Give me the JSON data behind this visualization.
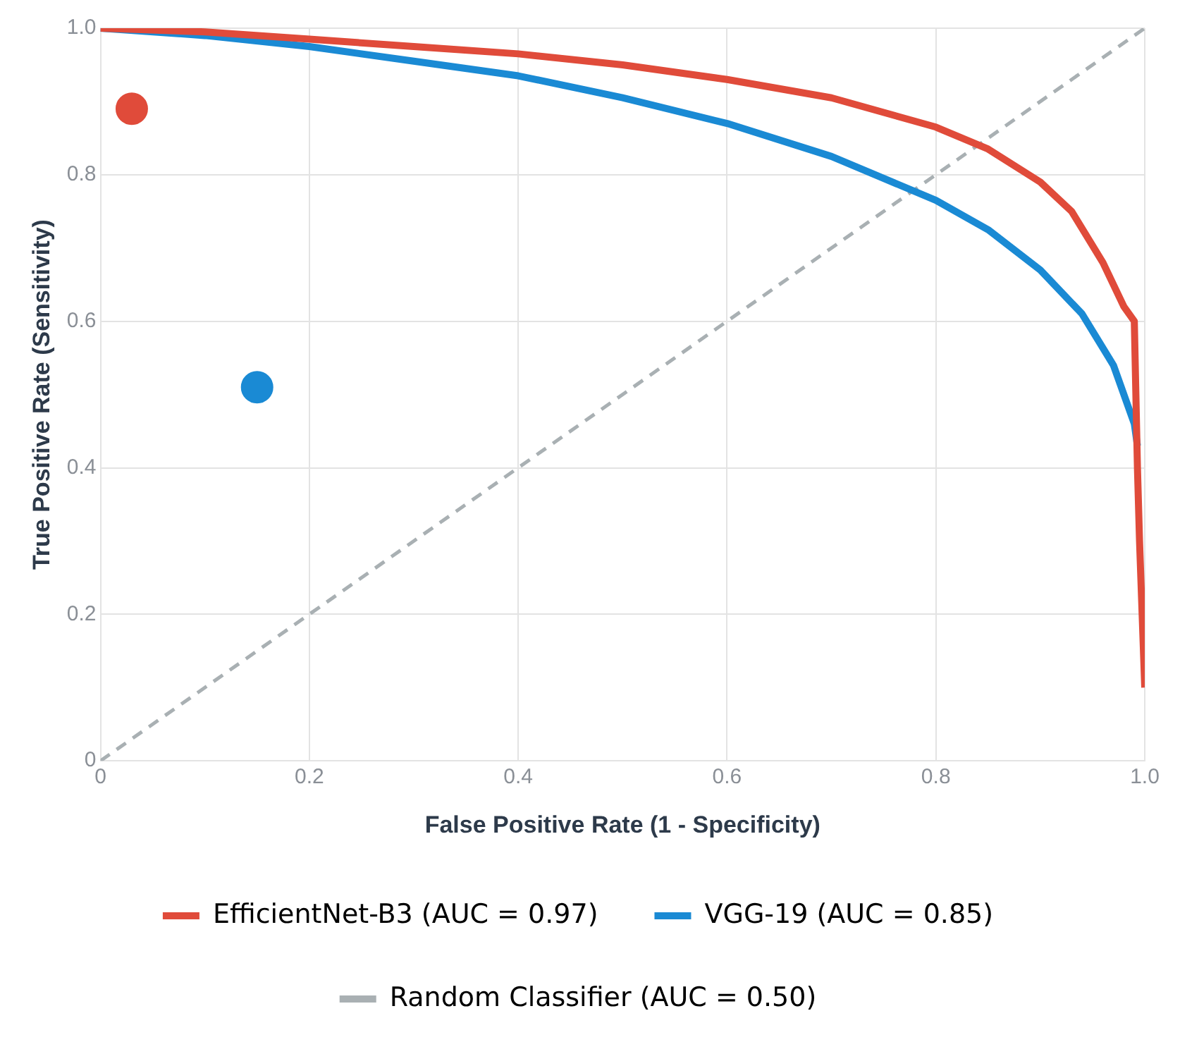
{
  "chart_data": {
    "type": "line",
    "xlabel": "False Positive Rate (1 - Specificity)",
    "ylabel": "True Positive Rate (Sensitivity)",
    "xlim": [
      0,
      1
    ],
    "ylim": [
      0,
      1
    ],
    "xticks": [
      0,
      0.2,
      0.4,
      0.6,
      0.8,
      {
        "value": 1,
        "label": "1.0"
      }
    ],
    "yticks": [
      0,
      0.2,
      0.4,
      0.6,
      0.8,
      {
        "value": 1,
        "label": "1.0"
      }
    ],
    "grid": true,
    "legend": "bottom",
    "marker": "none",
    "series": [
      {
        "name": "EfficientNet-B3 (AUC = 0.97)",
        "color": "#e04b3a",
        "line_style": "solid",
        "x": [
          0,
          0.1,
          0.2,
          0.3,
          0.4,
          0.5,
          0.6,
          0.7,
          0.8,
          0.85,
          0.9,
          0.93,
          0.96,
          0.98,
          0.99,
          0.993,
          0.995,
          1.0
        ],
        "values": [
          1,
          0.995,
          0.985,
          0.975,
          0.965,
          0.95,
          0.93,
          0.905,
          0.865,
          0.835,
          0.79,
          0.75,
          0.68,
          0.62,
          0.6,
          0.4,
          0.3,
          0.1
        ]
      },
      {
        "name": "VGG-19 (AUC = 0.85)",
        "color": "#1a8ad4",
        "line_style": "solid",
        "x": [
          0,
          0.1,
          0.2,
          0.3,
          0.4,
          0.5,
          0.6,
          0.7,
          0.8,
          0.85,
          0.9,
          0.94,
          0.97,
          0.99,
          0.993
        ],
        "values": [
          1,
          0.99,
          0.975,
          0.955,
          0.935,
          0.905,
          0.87,
          0.825,
          0.765,
          0.725,
          0.67,
          0.61,
          0.54,
          0.46,
          0.43
        ]
      },
      {
        "name": "Random Classifier (AUC = 0.50)",
        "color": "#a9b0b3",
        "line_style": "dashed",
        "x": [
          0,
          1
        ],
        "values": [
          0,
          1
        ]
      },
      {
        "type": "scatter",
        "color": "#e04b3a",
        "marker": "circle",
        "x": [
          0.03
        ],
        "values": [
          0.89
        ]
      },
      {
        "type": "scatter",
        "color": "#1a8ad4",
        "marker": "circle",
        "x": [
          0.15
        ],
        "values": [
          0.51
        ]
      }
    ]
  }
}
